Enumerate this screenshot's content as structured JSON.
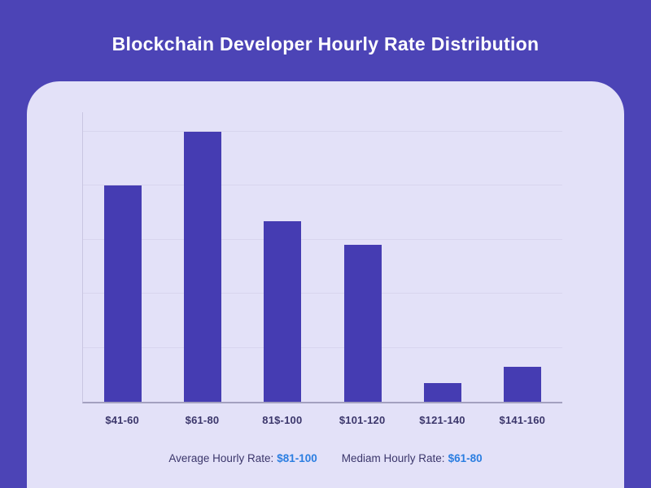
{
  "header": {
    "title": "Blockchain Developer Hourly Rate Distribution"
  },
  "chart_data": {
    "type": "bar",
    "title": "Blockchain Developer Hourly Rate Distribution",
    "categories": [
      "$41-60",
      "$61-80",
      "81$-100",
      "$101-120",
      "$121-140",
      "$141-160"
    ],
    "values": [
      40,
      50,
      33.5,
      29,
      3.5,
      6.5
    ],
    "xlabel": "",
    "ylabel": "",
    "ylim": [
      0,
      53.6
    ],
    "gridline_values": [
      10,
      20,
      30,
      40,
      50
    ],
    "y_tick_labels_visible": false,
    "grid": "horizontal-only",
    "legend": "none",
    "note": "No y-axis tick labels are rendered; values estimated from gridline spacing (1 gridline interval = 10)."
  },
  "caption": {
    "average_label": "Average Hourly Rate:",
    "average_value": "$81-100",
    "median_label": "Mediam Hourly Rate:",
    "median_value": "$61-80"
  },
  "colors": {
    "page_background": "#4C44B6",
    "panel_background": "#E3E1F8",
    "bar_fill": "#453CB2",
    "gridline": "#D8D5EE",
    "y_axis_line": "#C9C6E2",
    "x_axis_line": "#A3A0C0",
    "label_text": "#3B366B",
    "caption_value_blue": "#2B7EE1",
    "title_text": "#FFFFFF"
  }
}
